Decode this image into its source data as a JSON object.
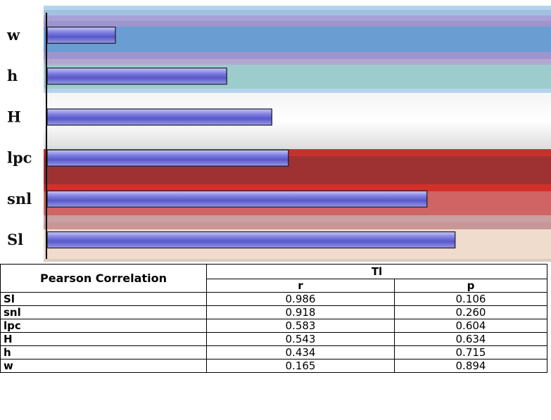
{
  "chart_data": {
    "type": "bar",
    "orientation": "horizontal",
    "categories": [
      "w",
      "h",
      "H",
      "lpc",
      "snl",
      "Sl"
    ],
    "values": [
      0.165,
      0.434,
      0.543,
      0.583,
      0.918,
      0.986
    ],
    "bar_color": "#7a7adc"
  },
  "table": {
    "corner_label": "Pearson Correlation",
    "group_label": "Tl",
    "columns": [
      "r",
      "p"
    ],
    "rows": [
      {
        "label": "Sl",
        "r": "0.986",
        "p": "0.106"
      },
      {
        "label": "snl",
        "r": "0.918",
        "p": "0.260"
      },
      {
        "label": "lpc",
        "r": "0.583",
        "p": "0.604"
      },
      {
        "label": "H",
        "r": "0.543",
        "p": "0.634"
      },
      {
        "label": "h",
        "r": "0.434",
        "p": "0.715"
      },
      {
        "label": "w",
        "r": "0.165",
        "p": "0.894"
      }
    ]
  }
}
